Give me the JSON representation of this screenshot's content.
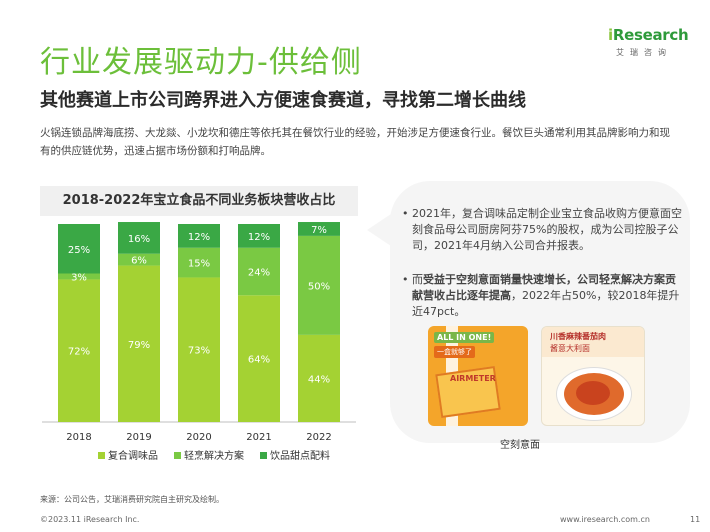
{
  "logo": {
    "word_i": "i",
    "word_rest": "Research",
    "cn": "艾瑞咨询"
  },
  "title": "行业发展驱动力-供给侧",
  "subtitle": "其他赛道上市公司跨界进入方便速食赛道，寻找第二增长曲线",
  "intro": "火锅连锁品牌海底捞、大龙燚、小龙坎和德庄等依托其在餐饮行业的经验，开始涉足方便速食行业。餐饮巨头通常利用其品牌影响力和现有的供应链优势，迅速占据市场份额和打响品牌。",
  "chart_data": {
    "type": "bar",
    "stacked": true,
    "title": "2018-2022年宝立食品不同业务板块营收占比",
    "categories": [
      "2018",
      "2019",
      "2020",
      "2021",
      "2022"
    ],
    "series": [
      {
        "name": "复合调味品",
        "values": [
          72,
          79,
          73,
          64,
          44
        ],
        "color": "#a4d233"
      },
      {
        "name": "轻烹解决方案",
        "values": [
          3,
          6,
          15,
          24,
          50
        ],
        "color": "#7ac943"
      },
      {
        "name": "饮品甜点配料",
        "values": [
          25,
          16,
          12,
          12,
          7
        ],
        "color": "#3aa845"
      }
    ],
    "value_suffix": "%",
    "ylim": [
      0,
      100
    ],
    "grid": false,
    "legend_position": "bottom"
  },
  "note": {
    "bullet": "•",
    "b1": "2021年，复合调味品定制企业宝立食品收购方便意面空刻食品母公司厨房阿芬75%的股权，成为公司控股子公司，2021年4月纳入公司合并报表。",
    "b2_bold": "受益于空刻意面销量快速增长，公司轻烹解决方案贡献营收占比逐年提高",
    "b2_pre": "而",
    "b2_rest": "，2022年占50%，较2018年提升近47pct。"
  },
  "products": {
    "p1_tag": "ALL IN ONE!",
    "p1_tag2": "一盒就够了",
    "p1_brand": "AIRMETER",
    "p2_line1": "川香麻辣番茄肉",
    "p2_line2": "酱意大利面",
    "caption": "空刻意面"
  },
  "source": "来源：公司公告，艾瑞消费研究院自主研究及绘制。",
  "footer_left": "©2023.11 iResearch Inc.",
  "footer_right": "www.iresearch.com.cn",
  "page_num": "11"
}
